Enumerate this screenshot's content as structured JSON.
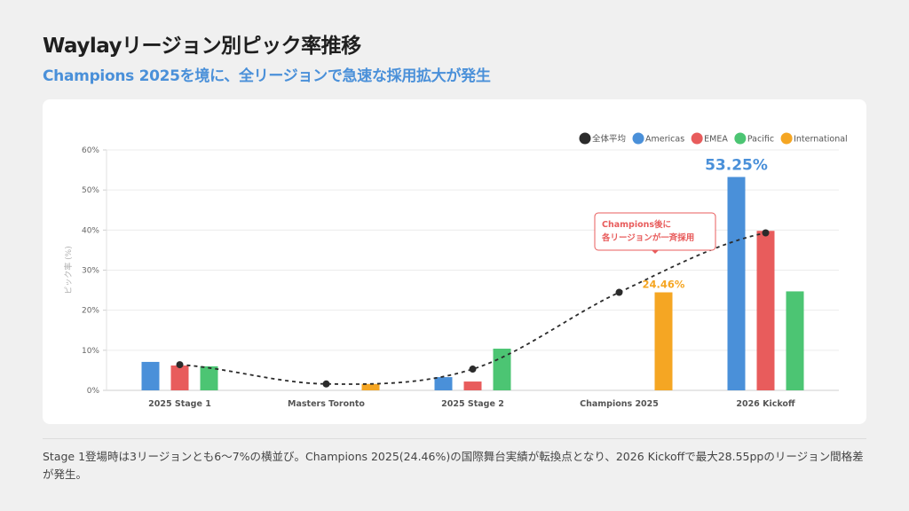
{
  "header": {
    "title": "Waylayリージョン別ピック率推移",
    "subtitle": "Champions 2025を境に、全リージョンで急速な採用拡大が発生"
  },
  "footer": {
    "note": "Stage 1登場時は3リージョンとも6〜7%の横並び。Champions 2025(24.46%)の国際舞台実績が転換点となり、2026 Kickoffで最大28.55ppのリージョン間格差が発生。"
  },
  "chart_data": {
    "type": "bar",
    "title": "",
    "xlabel": "",
    "ylabel": "ピック率 (%)",
    "ylim": [
      0,
      60
    ],
    "yticks": [
      "0%",
      "10%",
      "20%",
      "30%",
      "40%",
      "50%",
      "60%"
    ],
    "grid": true,
    "legend_position": "top-right",
    "categories": [
      "2025 Stage 1",
      "Masters Toronto",
      "2025 Stage 2",
      "Champions 2025",
      "2026 Kickoff"
    ],
    "series": [
      {
        "name": "Americas",
        "kind": "bar",
        "color": "#4a90d9",
        "values": [
          7.1,
          null,
          3.3,
          null,
          53.25
        ]
      },
      {
        "name": "EMEA",
        "kind": "bar",
        "color": "#e85c5c",
        "values": [
          6.2,
          null,
          2.2,
          null,
          39.8
        ]
      },
      {
        "name": "Pacific",
        "kind": "bar",
        "color": "#4cc573",
        "values": [
          6.0,
          null,
          10.4,
          null,
          24.7
        ]
      },
      {
        "name": "International",
        "kind": "bar",
        "color": "#f5a623",
        "values": [
          null,
          1.6,
          null,
          24.46,
          null
        ]
      },
      {
        "name": "全体平均",
        "kind": "line",
        "style": "dashed",
        "color": "#2b2b2b",
        "values": [
          6.4,
          1.6,
          5.3,
          24.46,
          39.3
        ]
      }
    ],
    "data_labels": [
      {
        "series": "Americas",
        "category": "2026 Kickoff",
        "text": "53.25%",
        "color": "#4a90d9"
      },
      {
        "series": "International",
        "category": "Champions 2025",
        "text": "24.46%",
        "color": "#f5a623"
      }
    ],
    "annotations": [
      {
        "text_lines": [
          "Champions後に",
          "各リージョンが一斉採用"
        ],
        "color": "#e85c5c",
        "near": "Champions 2025"
      }
    ]
  }
}
